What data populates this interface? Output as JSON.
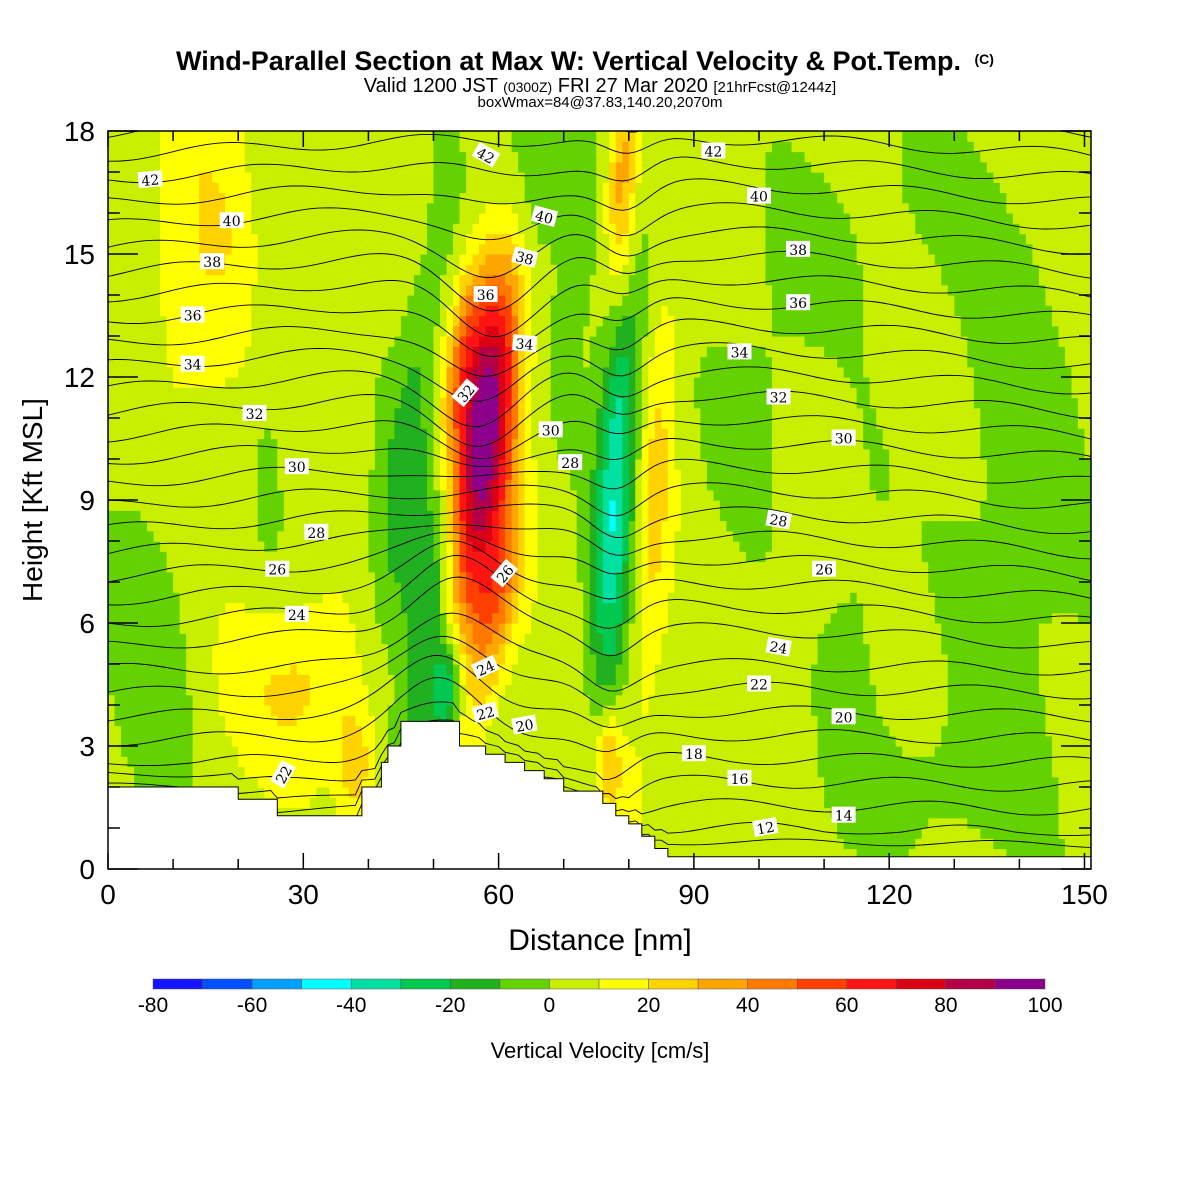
{
  "chart_data": {
    "type": "heatmap",
    "title": "Wind-Parallel Section at Max W: Vertical Velocity & Pot.Temp.",
    "title_mark": "(C)",
    "subtitle_parts": [
      "Valid 1200 JST",
      "(0300Z)",
      "FRI 27 Mar 2020",
      "[21hrFcst@1244z]"
    ],
    "subtitle2": "boxWmax=84@37.83,140.20,2070m",
    "xlabel": "Distance [nm]",
    "ylabel": "Height [Kft MSL]",
    "xlim": [
      0,
      151
    ],
    "ylim": [
      0,
      18
    ],
    "x_ticks": [
      0,
      30,
      60,
      90,
      120,
      150
    ],
    "y_ticks": [
      0,
      3,
      6,
      9,
      12,
      15,
      18
    ],
    "colorbar": {
      "label": "Vertical Velocity [cm/s]",
      "min": -80,
      "max": 100,
      "step": 10,
      "tick_labels": [
        -80,
        -60,
        -40,
        -20,
        0,
        20,
        40,
        60,
        80,
        100
      ],
      "colors": [
        "#1414ff",
        "#0050ff",
        "#00a0ff",
        "#00ffff",
        "#00e0a0",
        "#00c850",
        "#20b020",
        "#64d200",
        "#c8ee00",
        "#ffff00",
        "#ffd200",
        "#ffa500",
        "#ff7800",
        "#ff4000",
        "#ff1414",
        "#dc0014",
        "#b40046",
        "#8c008c"
      ]
    },
    "terrain_profile": [
      [
        0,
        2
      ],
      [
        20,
        2
      ],
      [
        20,
        1.7
      ],
      [
        26,
        1.7
      ],
      [
        26,
        1.3
      ],
      [
        39,
        1.3
      ],
      [
        39,
        2
      ],
      [
        42,
        2
      ],
      [
        42,
        2.6
      ],
      [
        43,
        2.6
      ],
      [
        43,
        3
      ],
      [
        45,
        3
      ],
      [
        45,
        3.6
      ],
      [
        54,
        3.6
      ],
      [
        54,
        3
      ],
      [
        58,
        3
      ],
      [
        58,
        2.8
      ],
      [
        61,
        2.8
      ],
      [
        61,
        2.6
      ],
      [
        64,
        2.6
      ],
      [
        64,
        2.4
      ],
      [
        67,
        2.4
      ],
      [
        67,
        2.2
      ],
      [
        70,
        2.2
      ],
      [
        70,
        1.9
      ],
      [
        76,
        1.9
      ],
      [
        76,
        1.6
      ],
      [
        78,
        1.6
      ],
      [
        78,
        1.3
      ],
      [
        80,
        1.3
      ],
      [
        80,
        1.1
      ],
      [
        82,
        1.1
      ],
      [
        82,
        0.8
      ],
      [
        84,
        0.8
      ],
      [
        84,
        0.5
      ],
      [
        86,
        0.5
      ],
      [
        86,
        0.3
      ],
      [
        151,
        0.3
      ]
    ],
    "velocity_features": [
      {
        "x": 57,
        "y": 10,
        "sx": 3.5,
        "sy": 3.0,
        "tilt": -0.55,
        "w": 95
      },
      {
        "x": 55,
        "y": 12.5,
        "sx": 2.5,
        "sy": 2.0,
        "tilt": -0.55,
        "w": 40
      },
      {
        "x": 59.5,
        "y": 6.5,
        "sx": 2.5,
        "sy": 1.8,
        "tilt": -0.55,
        "w": 35
      },
      {
        "x": 51,
        "y": 7.5,
        "sx": 2.8,
        "sy": 3.5,
        "tilt": -0.55,
        "w": -45
      },
      {
        "x": 52,
        "y": 4.3,
        "sx": 1.6,
        "sy": 0.9,
        "tilt": -0.3,
        "w": -40
      },
      {
        "x": 46,
        "y": 10,
        "sx": 3.0,
        "sy": 4.0,
        "tilt": -0.55,
        "w": -20
      },
      {
        "x": 64,
        "y": 16.5,
        "sx": 3.0,
        "sy": 2.5,
        "tilt": -0.4,
        "w": -25
      },
      {
        "x": 61,
        "y": 14,
        "sx": 2.0,
        "sy": 2.5,
        "tilt": -0.5,
        "w": 20
      },
      {
        "x": 78,
        "y": 9.5,
        "sx": 2.2,
        "sy": 4.0,
        "tilt": -0.2,
        "w": -45
      },
      {
        "x": 84,
        "y": 9,
        "sx": 2.0,
        "sy": 4.0,
        "tilt": -0.2,
        "w": 18
      },
      {
        "x": 79,
        "y": 16.5,
        "sx": 1.8,
        "sy": 2.2,
        "tilt": -0.1,
        "w": 40
      },
      {
        "x": 77,
        "y": 2.6,
        "sx": 1.5,
        "sy": 1.0,
        "tilt": 0,
        "w": 30
      },
      {
        "x": 72,
        "y": 15,
        "sx": 4.0,
        "sy": 3.0,
        "tilt": -0.3,
        "w": -10
      },
      {
        "x": 30,
        "y": 4.5,
        "sx": 8.0,
        "sy": 1.5,
        "tilt": 0,
        "w": 18
      },
      {
        "x": 38,
        "y": 2.5,
        "sx": 2.0,
        "sy": 1.0,
        "tilt": 0,
        "w": 25
      },
      {
        "x": 15,
        "y": 15,
        "sx": 6.0,
        "sy": 3.0,
        "tilt": 0,
        "w": 15
      },
      {
        "x": 6,
        "y": 5,
        "sx": 5.0,
        "sy": 3.0,
        "tilt": 0,
        "w": -12
      },
      {
        "x": 25,
        "y": 13,
        "sx": 2.5,
        "sy": 4.0,
        "tilt": 0,
        "w": -8
      },
      {
        "x": 100,
        "y": 12,
        "sx": 6.0,
        "sy": 3.0,
        "tilt": -0.5,
        "w": -8
      },
      {
        "x": 115,
        "y": 6,
        "sx": 4.0,
        "sy": 3.0,
        "tilt": 0,
        "w": -8
      },
      {
        "x": 140,
        "y": 9,
        "sx": 8.0,
        "sy": 6.0,
        "tilt": 0,
        "w": -10
      },
      {
        "x": 120,
        "y": 16,
        "sx": 10.0,
        "sy": 2.0,
        "tilt": 0,
        "w": -6
      },
      {
        "x": 125,
        "y": 2.0,
        "sx": 10.0,
        "sy": 1.2,
        "tilt": 0,
        "w": -8
      }
    ],
    "theta_levels": [
      12,
      13,
      14,
      15,
      16,
      17,
      18,
      19,
      20,
      21,
      22,
      23,
      24,
      25,
      26,
      27,
      28,
      29,
      30,
      31,
      32,
      33,
      34,
      35,
      36,
      37,
      38,
      39,
      40,
      41,
      42,
      43
    ],
    "contour_labels": [
      {
        "v": "42",
        "x": 6.5,
        "y": 16.8,
        "rot": -5
      },
      {
        "v": "40",
        "x": 19,
        "y": 15.8,
        "rot": 0
      },
      {
        "v": "38",
        "x": 16,
        "y": 14.8,
        "rot": 0
      },
      {
        "v": "36",
        "x": 13,
        "y": 13.5,
        "rot": 0
      },
      {
        "v": "34",
        "x": 13,
        "y": 12.3,
        "rot": 0
      },
      {
        "v": "32",
        "x": 22.5,
        "y": 11.1,
        "rot": 0
      },
      {
        "v": "30",
        "x": 29,
        "y": 9.8,
        "rot": 0
      },
      {
        "v": "28",
        "x": 32,
        "y": 8.2,
        "rot": 0
      },
      {
        "v": "26",
        "x": 26,
        "y": 7.3,
        "rot": 0
      },
      {
        "v": "24",
        "x": 29,
        "y": 6.2,
        "rot": 0
      },
      {
        "v": "22",
        "x": 27,
        "y": 2.3,
        "rot": -60
      },
      {
        "v": "42",
        "x": 58,
        "y": 17.4,
        "rot": 30
      },
      {
        "v": "40",
        "x": 67,
        "y": 15.9,
        "rot": 15
      },
      {
        "v": "38",
        "x": 64,
        "y": 14.9,
        "rot": 15
      },
      {
        "v": "36",
        "x": 58,
        "y": 14.0,
        "rot": 0
      },
      {
        "v": "34",
        "x": 64,
        "y": 12.8,
        "rot": 5
      },
      {
        "v": "32",
        "x": 55,
        "y": 11.6,
        "rot": -50
      },
      {
        "v": "30",
        "x": 68,
        "y": 10.7,
        "rot": 0
      },
      {
        "v": "28",
        "x": 71,
        "y": 9.9,
        "rot": 0
      },
      {
        "v": "26",
        "x": 61,
        "y": 7.2,
        "rot": -50
      },
      {
        "v": "24",
        "x": 58,
        "y": 4.9,
        "rot": -25
      },
      {
        "v": "22",
        "x": 58,
        "y": 3.8,
        "rot": -15
      },
      {
        "v": "20",
        "x": 64,
        "y": 3.5,
        "rot": -10
      },
      {
        "v": "42",
        "x": 93,
        "y": 17.5,
        "rot": 0
      },
      {
        "v": "40",
        "x": 100,
        "y": 16.4,
        "rot": 0
      },
      {
        "v": "38",
        "x": 106,
        "y": 15.1,
        "rot": 0
      },
      {
        "v": "36",
        "x": 106,
        "y": 13.8,
        "rot": 0
      },
      {
        "v": "34",
        "x": 97,
        "y": 12.6,
        "rot": 0
      },
      {
        "v": "32",
        "x": 103,
        "y": 11.5,
        "rot": 0
      },
      {
        "v": "30",
        "x": 113,
        "y": 10.5,
        "rot": 0
      },
      {
        "v": "28",
        "x": 103,
        "y": 8.5,
        "rot": 10
      },
      {
        "v": "26",
        "x": 110,
        "y": 7.3,
        "rot": 0
      },
      {
        "v": "24",
        "x": 103,
        "y": 5.4,
        "rot": 10
      },
      {
        "v": "22",
        "x": 100,
        "y": 4.5,
        "rot": 0
      },
      {
        "v": "20",
        "x": 113,
        "y": 3.7,
        "rot": 0
      },
      {
        "v": "18",
        "x": 90,
        "y": 2.8,
        "rot": 0
      },
      {
        "v": "16",
        "x": 97,
        "y": 2.2,
        "rot": 0
      },
      {
        "v": "14",
        "x": 113,
        "y": 1.3,
        "rot": 0
      },
      {
        "v": "12",
        "x": 101,
        "y": 1.0,
        "rot": -10
      }
    ]
  }
}
